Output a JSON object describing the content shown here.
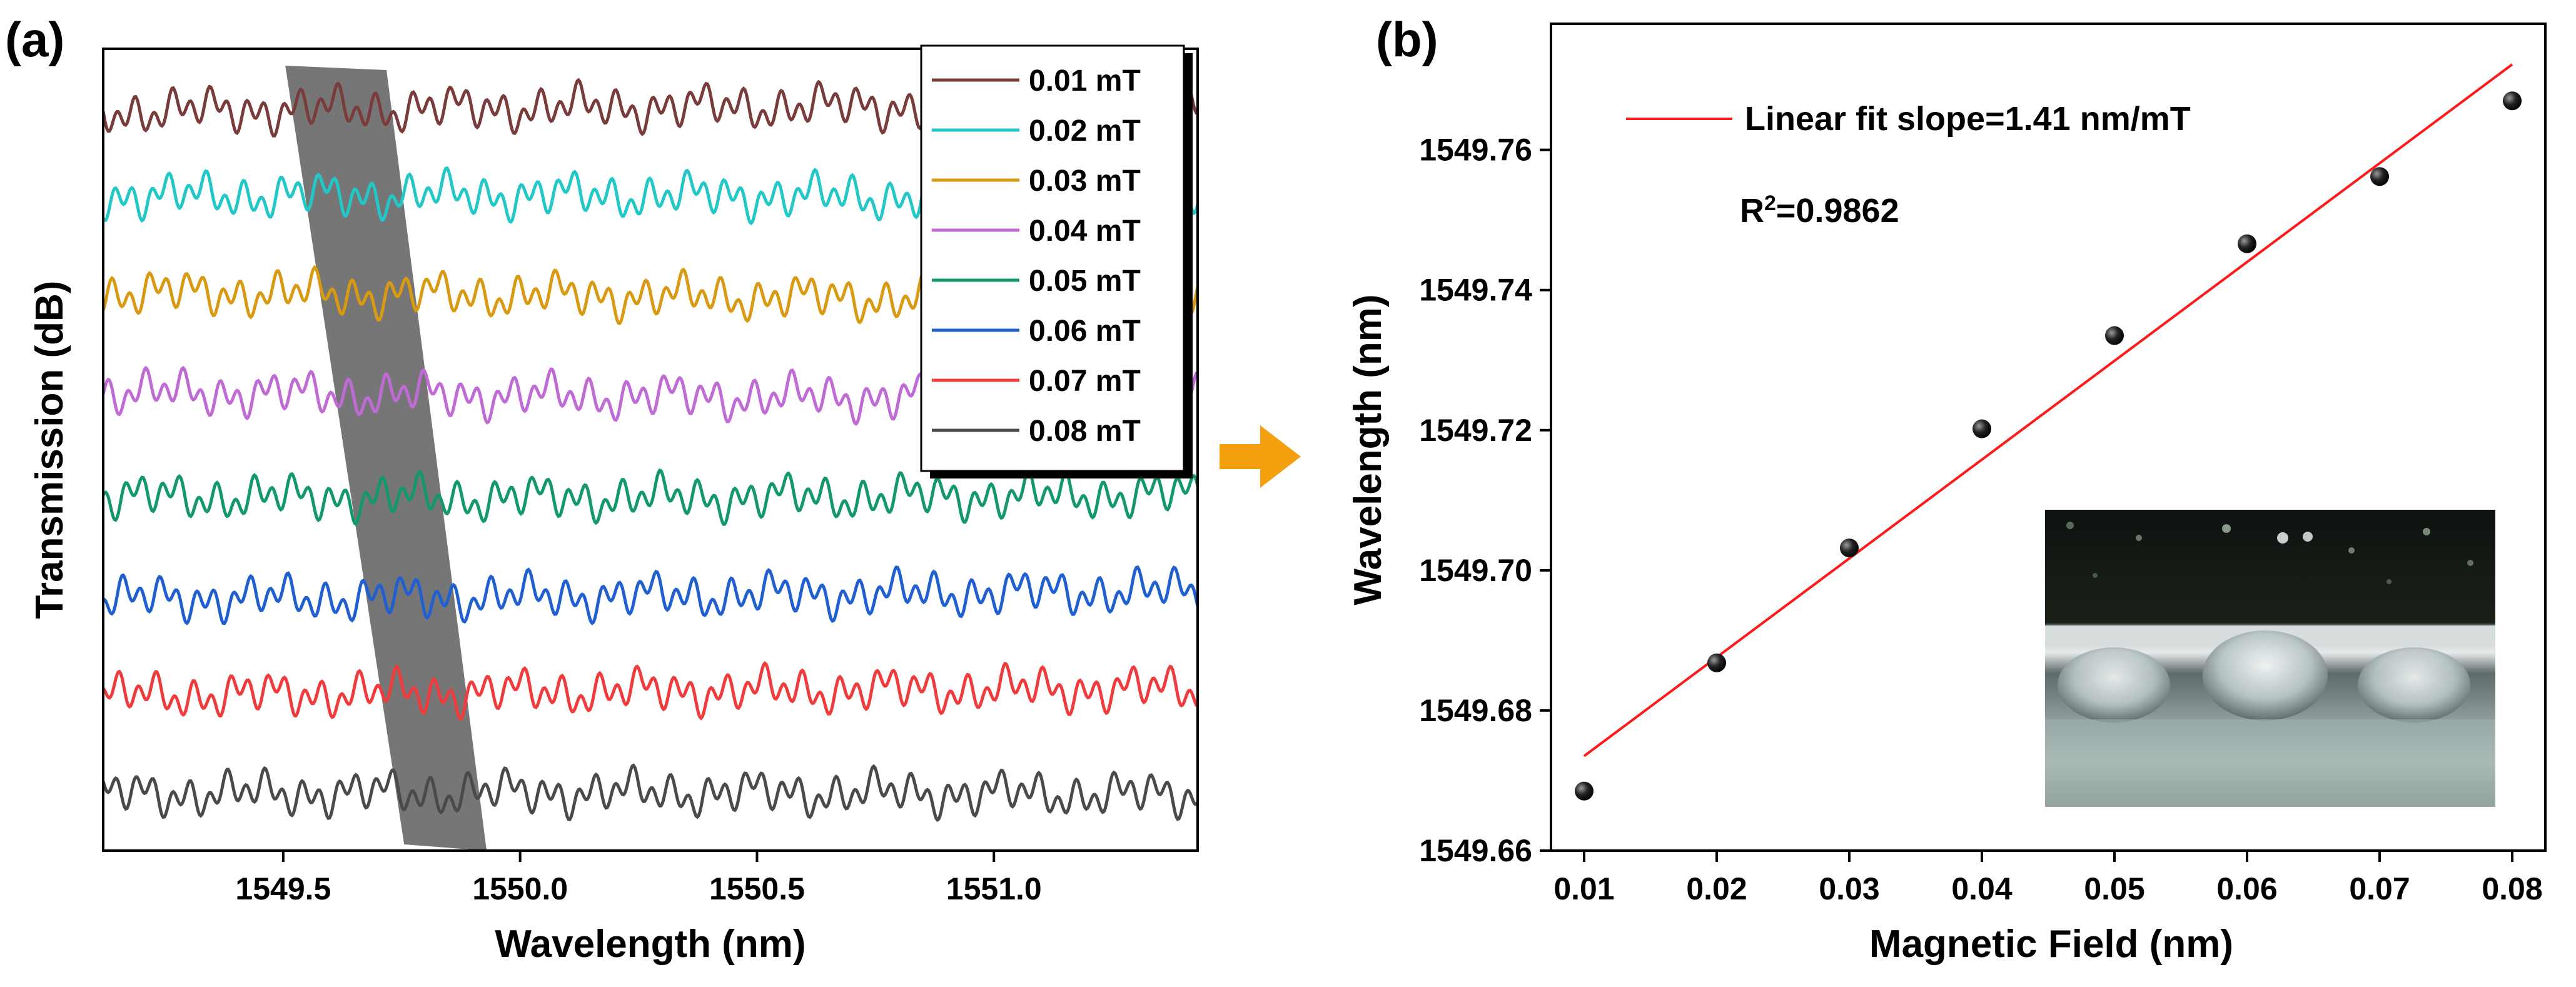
{
  "figure": {
    "panel_a_label": "(a)",
    "panel_b_label": "(b)",
    "colors": {
      "band": "#6f6f6f",
      "arrow": "#f5a00f",
      "fit_line": "#ff1a1a",
      "points": "#111111",
      "axis": "#000000"
    },
    "inset_photo_icon": "microsphere-photo"
  },
  "chart_data": [
    {
      "type": "line",
      "panel": "a",
      "title": "",
      "xlabel": "Wavelength (nm)",
      "ylabel": "Transmission (dB)",
      "xlim": [
        1549.12,
        1551.43
      ],
      "xticks": [
        1549.5,
        1550.0,
        1550.5,
        1551.0
      ],
      "xtick_labels": [
        "1549.5",
        "1550.0",
        "1550.5",
        "1551.0"
      ],
      "yticks_visible": false,
      "stacked_offset": true,
      "fringe_period_nm": 0.043,
      "highlight_band_nm": [
        1549.61,
        1549.85
      ],
      "legend_position": "top-right",
      "series": [
        {
          "name": "0.01 mT",
          "color": "#7a3b3b"
        },
        {
          "name": "0.02 mT",
          "color": "#22c8c8"
        },
        {
          "name": "0.03 mT",
          "color": "#d99a12"
        },
        {
          "name": "0.04 mT",
          "color": "#c06ad6"
        },
        {
          "name": "0.05 mT",
          "color": "#12986a"
        },
        {
          "name": "0.06 mT",
          "color": "#1f5fd0"
        },
        {
          "name": "0.07 mT",
          "color": "#ef3b3b"
        },
        {
          "name": "0.08 mT",
          "color": "#4a4a4a"
        }
      ]
    },
    {
      "type": "scatter",
      "panel": "b",
      "title": "",
      "xlabel": "Magnetic Field (nm)",
      "ylabel": "Wavelength (nm)",
      "xlim": [
        0.0075,
        0.0825
      ],
      "ylim": [
        1549.66,
        1549.778
      ],
      "xticks": [
        0.01,
        0.02,
        0.03,
        0.04,
        0.05,
        0.06,
        0.07,
        0.08
      ],
      "xtick_labels": [
        "0.01",
        "0.02",
        "0.03",
        "0.04",
        "0.05",
        "0.06",
        "0.07",
        "0.08"
      ],
      "yticks": [
        1549.66,
        1549.68,
        1549.7,
        1549.72,
        1549.74,
        1549.76
      ],
      "ytick_labels": [
        "1549.66",
        "1549.68",
        "1549.70",
        "1549.72",
        "1549.74",
        "1549.76"
      ],
      "x": [
        0.01,
        0.02,
        0.03,
        0.04,
        0.05,
        0.06,
        0.07,
        0.08
      ],
      "y": [
        1549.6685,
        1549.6868,
        1549.7032,
        1549.7202,
        1549.7335,
        1549.7466,
        1549.7562,
        1549.767
      ],
      "fit": {
        "x": [
          0.01,
          0.08
        ],
        "y": [
          1549.6735,
          1549.7722
        ]
      },
      "legend": [
        {
          "name": "Linear fit slope=1.41 nm/mT",
          "kind": "line"
        }
      ],
      "legend_position": "top-left",
      "annotation_r2_prefix": "R",
      "annotation_r2_superscript": "2",
      "annotation_r2_value": "=0.9862"
    }
  ]
}
